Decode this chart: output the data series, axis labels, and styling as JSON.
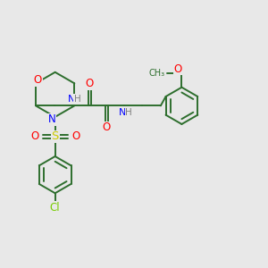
{
  "bg_color": "#e8e8e8",
  "bond_color": "#2d6e2d",
  "N_color": "#0000ff",
  "O_color": "#ff0000",
  "S_color": "#cccc00",
  "Cl_color": "#77cc00",
  "H_color": "#808080",
  "figsize": [
    3.0,
    3.0
  ],
  "dpi": 100,
  "xlim": [
    0,
    10
  ],
  "ylim": [
    0,
    10
  ]
}
